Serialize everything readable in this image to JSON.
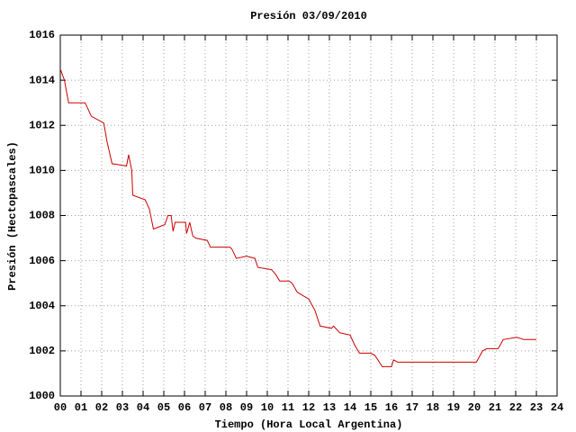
{
  "chart_data": {
    "type": "line",
    "title": "Presión 03/09/2010",
    "xlabel": "Tiempo (Hora Local Argentina)",
    "ylabel": "Presión (Hectopascales)",
    "xlim": [
      0,
      24
    ],
    "ylim": [
      1000,
      1016
    ],
    "xticks": [
      {
        "value": 0,
        "label": "00"
      },
      {
        "value": 1,
        "label": "01"
      },
      {
        "value": 2,
        "label": "02"
      },
      {
        "value": 3,
        "label": "03"
      },
      {
        "value": 4,
        "label": "04"
      },
      {
        "value": 5,
        "label": "05"
      },
      {
        "value": 6,
        "label": "06"
      },
      {
        "value": 7,
        "label": "07"
      },
      {
        "value": 8,
        "label": "08"
      },
      {
        "value": 9,
        "label": "09"
      },
      10,
      11,
      12,
      13,
      14,
      15,
      16,
      17,
      18,
      19,
      20,
      21,
      22,
      23,
      24
    ],
    "yticks": [
      1000,
      1002,
      1004,
      1006,
      1008,
      1010,
      1012,
      1014,
      1016
    ],
    "grid": true,
    "series": [
      {
        "name": "Presión",
        "color": "#cc0000",
        "x": [
          0,
          0.2,
          0.4,
          1.2,
          1.5,
          2.1,
          2.25,
          2.5,
          3.2,
          3.3,
          3.45,
          3.5,
          4.1,
          4.3,
          4.5,
          5.05,
          5.2,
          5.35,
          5.45,
          5.55,
          6.05,
          6.1,
          6.25,
          6.4,
          6.55,
          7.1,
          7.25,
          8.2,
          8.3,
          8.5,
          9.0,
          9.4,
          9.55,
          10.2,
          10.4,
          10.6,
          11.05,
          11.2,
          11.45,
          12.0,
          12.3,
          12.55,
          13.1,
          13.2,
          13.5,
          14.0,
          14.2,
          14.45,
          15.0,
          15.2,
          15.55,
          16.0,
          16.1,
          16.3,
          20.1,
          20.4,
          20.6,
          21.15,
          21.4,
          22.05,
          22.4,
          23.0
        ],
        "values": [
          1014.5,
          1014,
          1013,
          1013,
          1012.4,
          1012.1,
          1011.3,
          1010.3,
          1010.2,
          1010.7,
          1010,
          1008.9,
          1008.7,
          1008.3,
          1007.4,
          1007.6,
          1008,
          1008,
          1007.3,
          1007.7,
          1007.7,
          1007.2,
          1007.7,
          1007.1,
          1007.0,
          1006.9,
          1006.6,
          1006.6,
          1006.5,
          1006.1,
          1006.2,
          1006.1,
          1005.7,
          1005.6,
          1005.4,
          1005.1,
          1005.1,
          1005.0,
          1004.6,
          1004.3,
          1003.8,
          1003.1,
          1003.0,
          1003.1,
          1002.8,
          1002.7,
          1002.3,
          1001.9,
          1001.9,
          1001.8,
          1001.3,
          1001.3,
          1001.6,
          1001.5,
          1001.5,
          1002.0,
          1002.1,
          1002.1,
          1002.5,
          1002.6,
          1002.5,
          1002.5
        ]
      }
    ]
  }
}
